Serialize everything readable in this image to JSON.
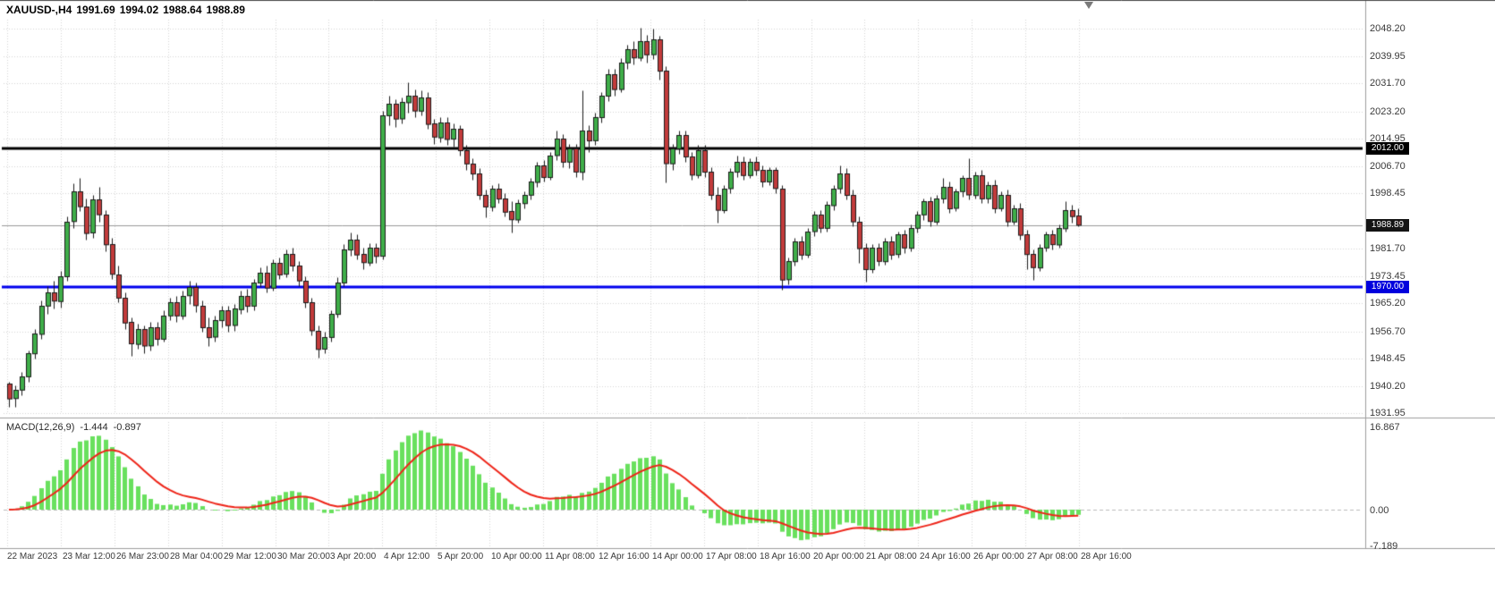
{
  "header": {
    "symbol": "XAUUSD-,H4",
    "open": "1991.69",
    "high": "1994.02",
    "low": "1988.64",
    "close": "1988.89"
  },
  "colors": {
    "background": "#ffffff",
    "grid": "#d6d6d6",
    "candle_up": "#3fae49",
    "candle_down": "#c23b3b",
    "candle_outline": "#1b1b1b",
    "macd_hist": "#69e05e",
    "macd_signal": "#ee2418",
    "axis_text": "#3a3a3a",
    "separator": "#9e9e9e",
    "zero_line": "#bcbcbc",
    "bid_line": "#9a9a9a",
    "top_border": "#4a4a4a",
    "hline_black": "#000000",
    "hline_blue": "#0000ee"
  },
  "price_axis": {
    "labels": [
      "2048.20",
      "2039.95",
      "2031.70",
      "2023.20",
      "2014.95",
      "2006.70",
      "1998.45",
      "1981.70",
      "1973.45",
      "1965.20",
      "1956.70",
      "1948.45",
      "1940.20",
      "1931.95"
    ],
    "badges": [
      {
        "text": "2012.00",
        "bg": "#000000"
      },
      {
        "text": "1988.89",
        "bg": "#141414"
      },
      {
        "text": "1970.00",
        "bg": "#0000dd"
      }
    ]
  },
  "time_axis": {
    "labels": [
      "22 Mar 2023",
      "23 Mar 12:00",
      "26 Mar 23:00",
      "28 Mar 04:00",
      "29 Mar 12:00",
      "30 Mar 20:00",
      "3 Apr 20:00",
      "4 Apr 12:00",
      "5 Apr 20:00",
      "10 Apr 00:00",
      "11 Apr 08:00",
      "12 Apr 16:00",
      "14 Apr 00:00",
      "17 Apr 08:00",
      "18 Apr 16:00",
      "20 Apr 00:00",
      "21 Apr 08:00",
      "24 Apr 16:00",
      "26 Apr 00:00",
      "27 Apr 08:00",
      "28 Apr 16:00"
    ]
  },
  "macd_pane": {
    "name": "MACD(12,26,9)",
    "value_main": "-1.444",
    "value_signal": "-0.897",
    "axis_labels": [
      "16.867",
      "0.00",
      "-7.189"
    ]
  },
  "chart_data": {
    "type": "candlestick",
    "symbol": "XAUUSD",
    "timeframe": "H4",
    "title": "XAUUSD-,H4 1991.69 1994.02 1988.64 1988.89",
    "price_axis_range": [
      1931.95,
      2051.0
    ],
    "grid": true,
    "hlines": [
      {
        "price": 2012.0,
        "color": "#000000",
        "width": 3
      },
      {
        "price": 1970.0,
        "color": "#0000ee",
        "width": 3
      }
    ],
    "bid": {
      "price": 1988.89,
      "color": "#9a9a9a"
    },
    "candles": [
      [
        1941,
        1941.5,
        1933.8,
        1936.5
      ],
      [
        1936.5,
        1940.5,
        1934,
        1939
      ],
      [
        1939,
        1944.5,
        1937.5,
        1943
      ],
      [
        1943,
        1951,
        1941.5,
        1950
      ],
      [
        1950,
        1957.5,
        1948.5,
        1956
      ],
      [
        1956,
        1966,
        1954.5,
        1964.5
      ],
      [
        1964.5,
        1970.5,
        1962,
        1968.5
      ],
      [
        1968.5,
        1972,
        1963.5,
        1966
      ],
      [
        1966,
        1975,
        1964,
        1973.5
      ],
      [
        1973.5,
        1991.5,
        1972,
        1990
      ],
      [
        1990,
        2001.5,
        1988,
        1999
      ],
      [
        1999,
        2003,
        1993,
        1994.5
      ],
      [
        1994.5,
        1997,
        1984.5,
        1986.5
      ],
      [
        1986.5,
        1998,
        1985,
        1996.5
      ],
      [
        1996.5,
        2000.5,
        1990,
        1992
      ],
      [
        1992,
        1993.5,
        1981,
        1983
      ],
      [
        1983,
        1985,
        1972.5,
        1974
      ],
      [
        1974,
        1976.5,
        1965.5,
        1967
      ],
      [
        1967,
        1968.5,
        1957.5,
        1959.5
      ],
      [
        1959.5,
        1961,
        1949.4,
        1953
      ],
      [
        1953,
        1959,
        1951.5,
        1957.5
      ],
      [
        1957.5,
        1958.5,
        1950,
        1952.5
      ],
      [
        1952.5,
        1959.5,
        1951,
        1958
      ],
      [
        1958,
        1959.5,
        1952.5,
        1954.5
      ],
      [
        1954.5,
        1963,
        1953.5,
        1961.5
      ],
      [
        1961.5,
        1967,
        1960,
        1965.5
      ],
      [
        1965.5,
        1967.5,
        1959.5,
        1961.5
      ],
      [
        1961.5,
        1969,
        1960.5,
        1967.5
      ],
      [
        1967.5,
        1972,
        1965,
        1970
      ],
      [
        1970,
        1971.5,
        1962.5,
        1964.5
      ],
      [
        1964.5,
        1966,
        1956.5,
        1958
      ],
      [
        1958,
        1961,
        1952.2,
        1955
      ],
      [
        1955,
        1961.5,
        1953.5,
        1960
      ],
      [
        1960,
        1964.5,
        1958,
        1963
      ],
      [
        1963,
        1964.5,
        1956.5,
        1958.5
      ],
      [
        1958.5,
        1965,
        1957,
        1963.5
      ],
      [
        1963.5,
        1969,
        1962,
        1967.5
      ],
      [
        1967.5,
        1969.5,
        1962.5,
        1964.5
      ],
      [
        1964.5,
        1972.5,
        1963,
        1971.5
      ],
      [
        1971.5,
        1976,
        1970,
        1974.5
      ],
      [
        1974.5,
        1976.5,
        1968.5,
        1970
      ],
      [
        1970,
        1978.5,
        1969,
        1977.5
      ],
      [
        1977.5,
        1979,
        1972.5,
        1974
      ],
      [
        1974,
        1981.5,
        1973,
        1980
      ],
      [
        1980,
        1982,
        1975,
        1976.5
      ],
      [
        1976.5,
        1978,
        1970.5,
        1972
      ],
      [
        1972,
        1973.5,
        1964,
        1965.5
      ],
      [
        1965.5,
        1967,
        1955.5,
        1957
      ],
      [
        1957,
        1958.5,
        1948.7,
        1951.5
      ],
      [
        1951.5,
        1956.5,
        1950,
        1955
      ],
      [
        1955,
        1963,
        1953.5,
        1962
      ],
      [
        1962,
        1973,
        1961,
        1971.5
      ],
      [
        1971.5,
        1983,
        1970.5,
        1981.5
      ],
      [
        1981.5,
        1986.5,
        1979.5,
        1984.5
      ],
      [
        1984.5,
        1986,
        1978.5,
        1980
      ],
      [
        1980,
        1982,
        1975.5,
        1977.5
      ],
      [
        1977.5,
        1983.5,
        1976.5,
        1982
      ],
      [
        1982,
        1983.5,
        1977.5,
        1979.5
      ],
      [
        1979.5,
        2023.5,
        1978.5,
        2022
      ],
      [
        2022,
        2028,
        2019,
        2025.5
      ],
      [
        2025.5,
        2027,
        2018.5,
        2021
      ],
      [
        2021,
        2027.5,
        2019.5,
        2026
      ],
      [
        2026,
        2032.2,
        2023,
        2028
      ],
      [
        2028,
        2030,
        2021.5,
        2023.5
      ],
      [
        2023.5,
        2029.5,
        2022,
        2027.5
      ],
      [
        2027.5,
        2029,
        2018,
        2019.5
      ],
      [
        2019.5,
        2021,
        2013.5,
        2015.5
      ],
      [
        2015.5,
        2021.5,
        2014,
        2020
      ],
      [
        2020,
        2021.5,
        2013,
        2015
      ],
      [
        2015,
        2019.5,
        2012.5,
        2018
      ],
      [
        2018,
        2019,
        2010,
        2011.5
      ],
      [
        2011.5,
        2013,
        2005.5,
        2007.5
      ],
      [
        2007.5,
        2009,
        2002.5,
        2004.5
      ],
      [
        2004.5,
        2006,
        1996.5,
        1998
      ],
      [
        1998,
        1999.5,
        1991.2,
        1994.5
      ],
      [
        1994.5,
        2001,
        1993,
        2000
      ],
      [
        2000,
        2001.5,
        1995.5,
        1997
      ],
      [
        1997,
        1998.5,
        1991.5,
        1993
      ],
      [
        1993,
        1996,
        1986.5,
        1990.5
      ],
      [
        1990.5,
        1996.5,
        1989.5,
        1995.5
      ],
      [
        1995.5,
        1999,
        1994,
        1998
      ],
      [
        1998,
        2003,
        1996.5,
        2002
      ],
      [
        2002,
        2008,
        2000.5,
        2007
      ],
      [
        2007,
        2008.5,
        2002,
        2003.5
      ],
      [
        2003.5,
        2011,
        2002.5,
        2010
      ],
      [
        2010,
        2017.5,
        2008.5,
        2015
      ],
      [
        2015,
        2016.5,
        2006.5,
        2008
      ],
      [
        2008,
        2013.5,
        2006,
        2012
      ],
      [
        2012,
        2013.5,
        2003.5,
        2005
      ],
      [
        2005,
        2029.5,
        2002.5,
        2017.5
      ],
      [
        2017.5,
        2019,
        2011,
        2014.5
      ],
      [
        2014.5,
        2023,
        2013,
        2021.5
      ],
      [
        2021.5,
        2029,
        2020,
        2028
      ],
      [
        2028,
        2036,
        2026.5,
        2034.5
      ],
      [
        2034.5,
        2036,
        2028,
        2030
      ],
      [
        2030,
        2039.5,
        2029,
        2038
      ],
      [
        2038,
        2043.5,
        2036,
        2042
      ],
      [
        2042,
        2044.5,
        2037.5,
        2039.5
      ],
      [
        2039.5,
        2048.5,
        2038.5,
        2044.5
      ],
      [
        2044.5,
        2046.5,
        2038,
        2040.5
      ],
      [
        2040.5,
        2048.2,
        2039,
        2045
      ],
      [
        2045,
        2046,
        2033,
        2035.5
      ],
      [
        2035.5,
        2037,
        2001.8,
        2007.5
      ],
      [
        2007.5,
        2013.5,
        2005.5,
        2012
      ],
      [
        2012,
        2017.5,
        2010.5,
        2016
      ],
      [
        2016,
        2017.5,
        2008,
        2009.5
      ],
      [
        2009.5,
        2011,
        2002.5,
        2004
      ],
      [
        2004,
        2013,
        2003,
        2011.5
      ],
      [
        2011.5,
        2013,
        2003.5,
        2005
      ],
      [
        2005,
        2006.5,
        1996.5,
        1998
      ],
      [
        1998,
        2000.5,
        1989.5,
        1993.5
      ],
      [
        1993.5,
        2001,
        1992.5,
        2000
      ],
      [
        2000,
        2006,
        1998.5,
        2005
      ],
      [
        2005,
        2010,
        2003.5,
        2008
      ],
      [
        2008,
        2009.5,
        2002.5,
        2004
      ],
      [
        2004,
        2009,
        2003,
        2008
      ],
      [
        2008,
        2009.5,
        2004,
        2005.5
      ],
      [
        2005.5,
        2007,
        2000.5,
        2002
      ],
      [
        2002,
        2006.5,
        2001,
        2005.5
      ],
      [
        2005.5,
        2006.5,
        1998.5,
        2000
      ],
      [
        2000,
        2001,
        1969.3,
        1972.5
      ],
      [
        1972.5,
        1979,
        1971,
        1978
      ],
      [
        1978,
        1985,
        1976.5,
        1984
      ],
      [
        1984,
        1985.5,
        1978.5,
        1980
      ],
      [
        1980,
        1988,
        1979,
        1987
      ],
      [
        1987,
        1993,
        1985.5,
        1992
      ],
      [
        1992,
        1993.5,
        1986.5,
        1988
      ],
      [
        1988,
        1996,
        1987,
        1995
      ],
      [
        1995,
        2001,
        1993.5,
        2000
      ],
      [
        2000,
        2007,
        1998.5,
        2004.5
      ],
      [
        2004.5,
        2006,
        1996.5,
        1998
      ],
      [
        1998,
        1999.5,
        1988.5,
        1990
      ],
      [
        1990,
        1991.5,
        1977.5,
        1982
      ],
      [
        1982,
        1983.5,
        1971.8,
        1975.5
      ],
      [
        1975.5,
        1983,
        1974.5,
        1982
      ],
      [
        1982,
        1983.5,
        1976.5,
        1978
      ],
      [
        1978,
        1985,
        1977,
        1984
      ],
      [
        1984,
        1985.5,
        1978.5,
        1980
      ],
      [
        1980,
        1987,
        1979,
        1986
      ],
      [
        1986,
        1987.5,
        1980.5,
        1982
      ],
      [
        1982,
        1989,
        1981,
        1988
      ],
      [
        1988,
        1993,
        1986.5,
        1992
      ],
      [
        1992,
        1997,
        1990.5,
        1996
      ],
      [
        1996,
        1997.5,
        1988.5,
        1990
      ],
      [
        1990,
        1998,
        1989,
        1997
      ],
      [
        1997,
        2003,
        1995.5,
        2000.5
      ],
      [
        2000.5,
        2002,
        1992.5,
        1994
      ],
      [
        1994,
        2000,
        1993,
        1999
      ],
      [
        1999,
        2004,
        1997.5,
        2003
      ],
      [
        2003,
        2009,
        1996.5,
        1998
      ],
      [
        1998,
        2005,
        1997,
        2004
      ],
      [
        2004,
        2005.5,
        1995.5,
        1997
      ],
      [
        1997,
        2002,
        1995.5,
        2001
      ],
      [
        2001,
        2002.5,
        1992.5,
        1994
      ],
      [
        1994,
        1999,
        1993,
        1998
      ],
      [
        1998,
        1999.5,
        1988.5,
        1990
      ],
      [
        1990,
        1995,
        1989,
        1994
      ],
      [
        1994,
        1995.5,
        1984.5,
        1986
      ],
      [
        1986,
        1987.5,
        1975.5,
        1980
      ],
      [
        1980,
        1981.5,
        1972.2,
        1976
      ],
      [
        1976,
        1983,
        1975,
        1982
      ],
      [
        1982,
        1987,
        1981,
        1986
      ],
      [
        1986,
        1987.5,
        1981.5,
        1983
      ],
      [
        1983,
        1989,
        1982,
        1988
      ],
      [
        1988,
        1996,
        1987,
        1993.5
      ],
      [
        1993.5,
        1995,
        1989.5,
        1991.69
      ],
      [
        1991.69,
        1994.02,
        1988.64,
        1988.89
      ]
    ],
    "indicator": {
      "type": "macd",
      "label": "MACD(12,26,9)",
      "fast": 12,
      "slow": 26,
      "signal": 9,
      "last_macd": -1.444,
      "last_signal": -0.897,
      "axis_range": [
        -7.189,
        16.867
      ]
    }
  }
}
